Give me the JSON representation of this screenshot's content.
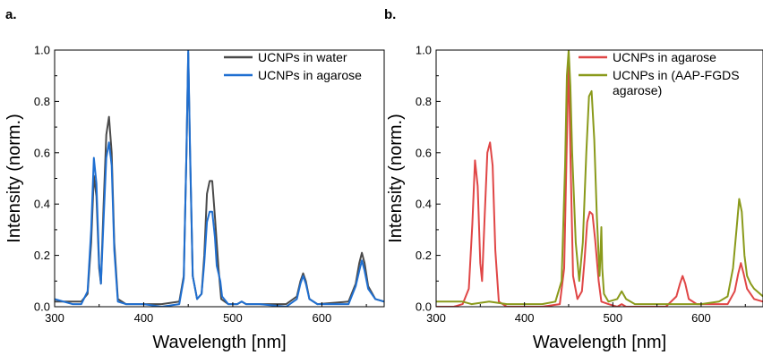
{
  "chart_data": [
    {
      "panel_label": "a.",
      "type": "line",
      "xlabel": "Wavelength [nm]",
      "ylabel": "Intensity (norm.)",
      "xlim": [
        300,
        670
      ],
      "ylim": [
        0,
        1.0
      ],
      "xticks": [
        300,
        400,
        500,
        600
      ],
      "xtick_labels": [
        "300",
        "400",
        "500",
        "600"
      ],
      "yticks": [
        0.0,
        0.2,
        0.4,
        0.6,
        0.8,
        1.0
      ],
      "ytick_labels": [
        "0.0",
        "0.2",
        "0.4",
        "0.6",
        "0.8",
        "1.0"
      ],
      "legend_position": "top-right",
      "series": [
        {
          "name": "UCNPs in water",
          "color": "#4a4a4a",
          "x": [
            300,
            320,
            330,
            337,
            341,
            344,
            347,
            350,
            352,
            355,
            358,
            361,
            364,
            367,
            371,
            380,
            400,
            420,
            440,
            445,
            448,
            450,
            452,
            455,
            460,
            465,
            468,
            471,
            474,
            477,
            480,
            484,
            487,
            495,
            505,
            510,
            515,
            530,
            560,
            572,
            576,
            579,
            582,
            586,
            595,
            630,
            638,
            642,
            645,
            648,
            652,
            660,
            670
          ],
          "y": [
            0.02,
            0.02,
            0.02,
            0.05,
            0.25,
            0.51,
            0.43,
            0.15,
            0.09,
            0.4,
            0.67,
            0.74,
            0.6,
            0.25,
            0.03,
            0.01,
            0.01,
            0.01,
            0.02,
            0.12,
            0.6,
            0.99,
            0.6,
            0.12,
            0.03,
            0.05,
            0.2,
            0.44,
            0.49,
            0.49,
            0.35,
            0.15,
            0.03,
            0.01,
            0.01,
            0.02,
            0.01,
            0.01,
            0.01,
            0.04,
            0.1,
            0.13,
            0.1,
            0.03,
            0.01,
            0.02,
            0.09,
            0.17,
            0.21,
            0.17,
            0.08,
            0.03,
            0.02
          ]
        },
        {
          "name": "UCNPs in agarose",
          "color": "#1f6fd1",
          "x": [
            300,
            320,
            330,
            337,
            341,
            344,
            347,
            350,
            352,
            355,
            358,
            361,
            364,
            367,
            371,
            380,
            400,
            420,
            440,
            445,
            448,
            450,
            452,
            455,
            460,
            465,
            468,
            471,
            474,
            477,
            480,
            482,
            484,
            486,
            488,
            495,
            505,
            510,
            515,
            530,
            560,
            572,
            576,
            579,
            582,
            586,
            595,
            630,
            638,
            642,
            645,
            648,
            652,
            660,
            670
          ],
          "y": [
            0.03,
            0.01,
            0.01,
            0.06,
            0.3,
            0.58,
            0.48,
            0.17,
            0.09,
            0.34,
            0.58,
            0.64,
            0.55,
            0.22,
            0.02,
            0.01,
            0.01,
            0.0,
            0.01,
            0.11,
            0.6,
            1.0,
            0.62,
            0.12,
            0.03,
            0.05,
            0.17,
            0.33,
            0.37,
            0.37,
            0.27,
            0.16,
            0.13,
            0.1,
            0.04,
            0.01,
            0.01,
            0.02,
            0.01,
            0.01,
            0.0,
            0.03,
            0.09,
            0.12,
            0.09,
            0.03,
            0.01,
            0.01,
            0.08,
            0.14,
            0.18,
            0.14,
            0.07,
            0.03,
            0.02
          ]
        }
      ]
    },
    {
      "panel_label": "b.",
      "type": "line",
      "xlabel": "Wavelength [nm]",
      "ylabel": "Intensity (norm.)",
      "xlim": [
        300,
        670
      ],
      "ylim": [
        0,
        1.0
      ],
      "xticks": [
        300,
        400,
        500,
        600
      ],
      "xtick_labels": [
        "300",
        "400",
        "500",
        "600"
      ],
      "yticks": [
        0.0,
        0.2,
        0.4,
        0.6,
        0.8,
        1.0
      ],
      "ytick_labels": [
        "0.0",
        "0.2",
        "0.4",
        "0.6",
        "0.8",
        "1.0"
      ],
      "legend_position": "top-right",
      "series": [
        {
          "name": "UCNPs in agarose",
          "color": "#e04646",
          "x": [
            300,
            320,
            330,
            337,
            341,
            344,
            347,
            350,
            352,
            355,
            358,
            361,
            364,
            367,
            371,
            380,
            400,
            420,
            440,
            445,
            448,
            450,
            452,
            455,
            460,
            465,
            468,
            471,
            474,
            477,
            480,
            484,
            487,
            495,
            505,
            510,
            515,
            530,
            560,
            572,
            576,
            579,
            582,
            586,
            595,
            630,
            638,
            642,
            645,
            648,
            652,
            660,
            670
          ],
          "y": [
            0.0,
            0.0,
            0.01,
            0.07,
            0.32,
            0.57,
            0.47,
            0.17,
            0.1,
            0.36,
            0.6,
            0.64,
            0.55,
            0.22,
            0.02,
            0.0,
            0.0,
            0.0,
            0.01,
            0.15,
            0.65,
            0.98,
            0.6,
            0.12,
            0.03,
            0.06,
            0.18,
            0.33,
            0.37,
            0.36,
            0.26,
            0.1,
            0.02,
            0.01,
            0.0,
            0.01,
            0.0,
            0.0,
            0.0,
            0.04,
            0.09,
            0.12,
            0.09,
            0.03,
            0.01,
            0.01,
            0.06,
            0.13,
            0.17,
            0.13,
            0.07,
            0.03,
            0.02
          ]
        },
        {
          "name": "UCNPs in (AAP-FGDS agarose)",
          "color": "#8a9a1b",
          "x": [
            300,
            320,
            330,
            340,
            360,
            380,
            400,
            420,
            435,
            442,
            446,
            448,
            450,
            452,
            454,
            458,
            462,
            466,
            470,
            473,
            476,
            479,
            482,
            485,
            486,
            487,
            488,
            490,
            495,
            505,
            510,
            515,
            525,
            560,
            600,
            620,
            630,
            636,
            640,
            643,
            646,
            649,
            652,
            656,
            660,
            670
          ],
          "y": [
            0.02,
            0.02,
            0.02,
            0.01,
            0.02,
            0.01,
            0.01,
            0.01,
            0.02,
            0.1,
            0.55,
            0.9,
            1.0,
            0.86,
            0.6,
            0.25,
            0.1,
            0.25,
            0.6,
            0.82,
            0.84,
            0.65,
            0.35,
            0.12,
            0.2,
            0.31,
            0.15,
            0.05,
            0.02,
            0.03,
            0.06,
            0.03,
            0.01,
            0.01,
            0.01,
            0.02,
            0.04,
            0.15,
            0.3,
            0.42,
            0.37,
            0.2,
            0.12,
            0.09,
            0.07,
            0.04
          ]
        }
      ]
    }
  ]
}
